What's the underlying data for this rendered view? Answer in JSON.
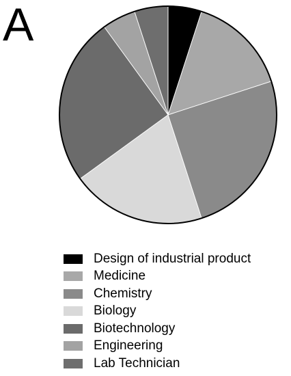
{
  "panel_label": "A",
  "chart_data": {
    "type": "pie",
    "title": "",
    "start_angle_deg": 0,
    "direction": "clockwise",
    "slices": [
      {
        "label": "Design of industrial product",
        "value": 5,
        "color": "#000000"
      },
      {
        "label": "Medicine",
        "value": 15,
        "color": "#a8a8a8"
      },
      {
        "label": "Chemistry",
        "value": 25,
        "color": "#8a8a8a"
      },
      {
        "label": "Biology",
        "value": 20,
        "color": "#d9d9d9"
      },
      {
        "label": "Biotechnology",
        "value": 25,
        "color": "#6b6b6b"
      },
      {
        "label": "Engineering",
        "value": 5,
        "color": "#a3a3a3"
      },
      {
        "label": "Lab Technician",
        "value": 5,
        "color": "#6e6e6e"
      }
    ],
    "legend_position": "bottom"
  }
}
